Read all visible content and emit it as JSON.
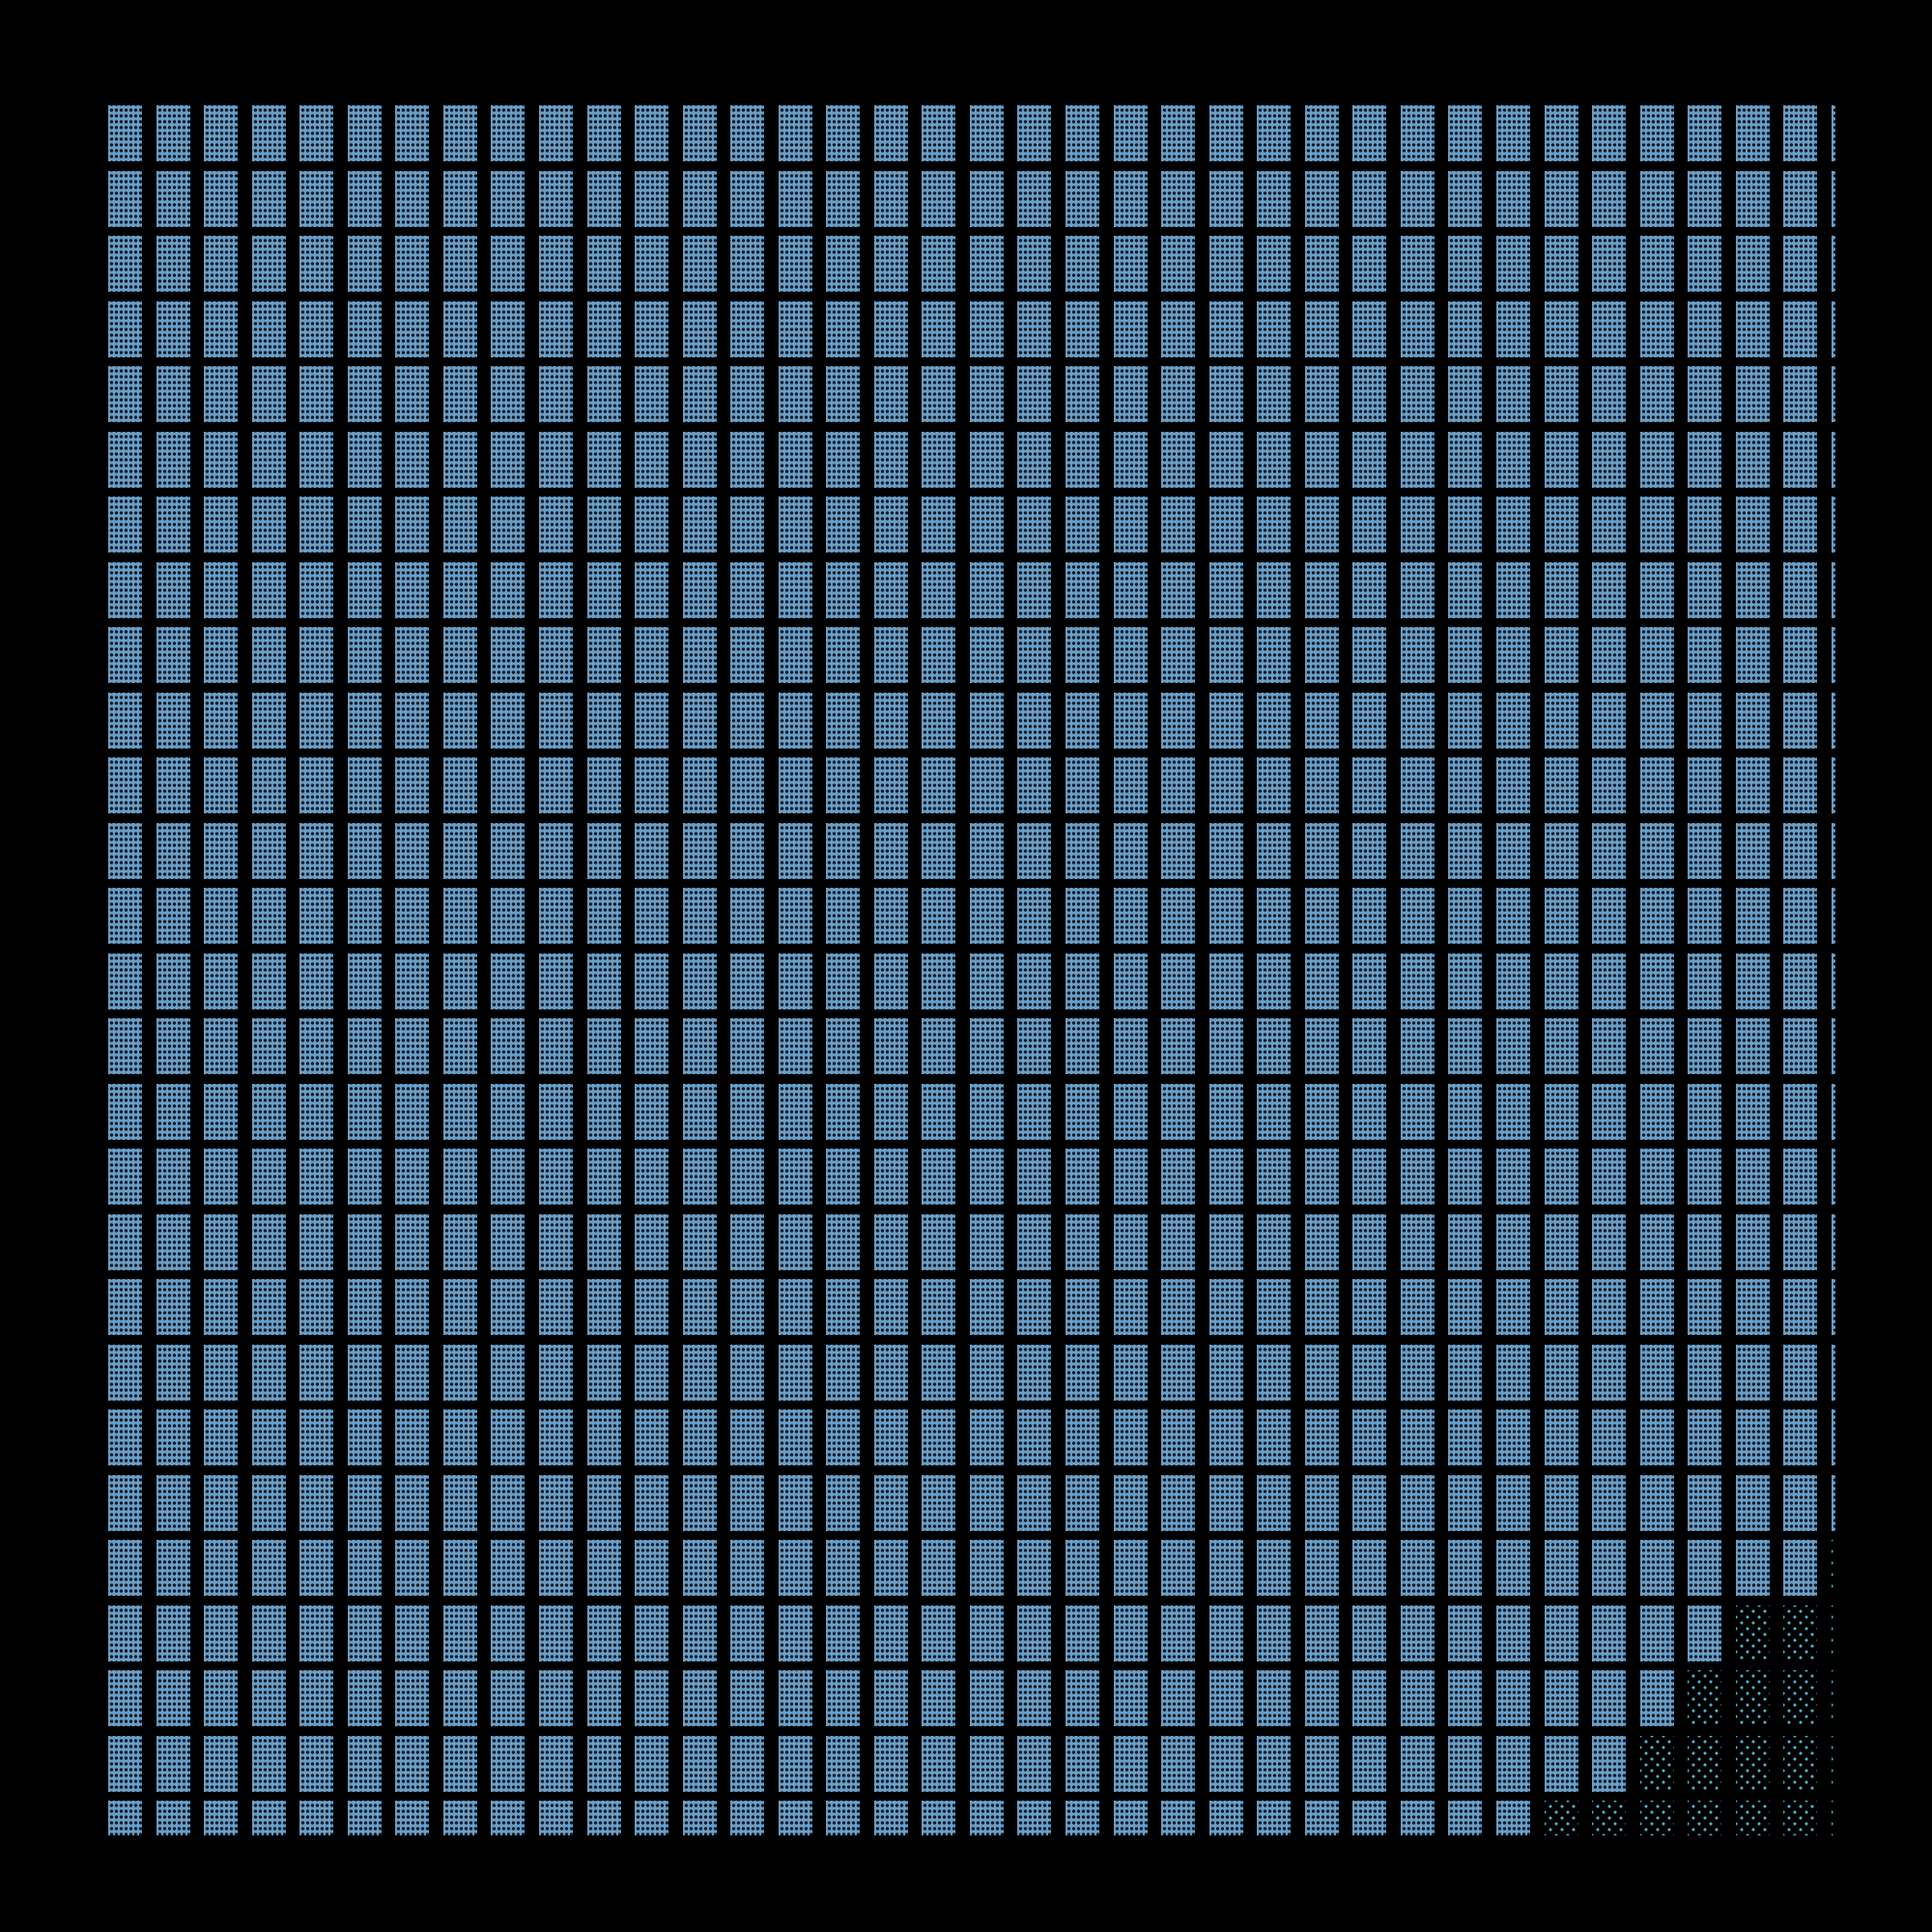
{
  "grid": {
    "rows": 27,
    "columns": 37,
    "dotted_cells_from_right_per_row": [
      0,
      0,
      0,
      0,
      0,
      0,
      0,
      0,
      0,
      0,
      0,
      0,
      0,
      0,
      0,
      0,
      0,
      0,
      0,
      0,
      0,
      0,
      1,
      3,
      4,
      5,
      7
    ]
  },
  "colors": {
    "background": "#000000",
    "solid_cell": "#6a9fc8",
    "dotted_cell_dots": "#4fb3cc"
  }
}
